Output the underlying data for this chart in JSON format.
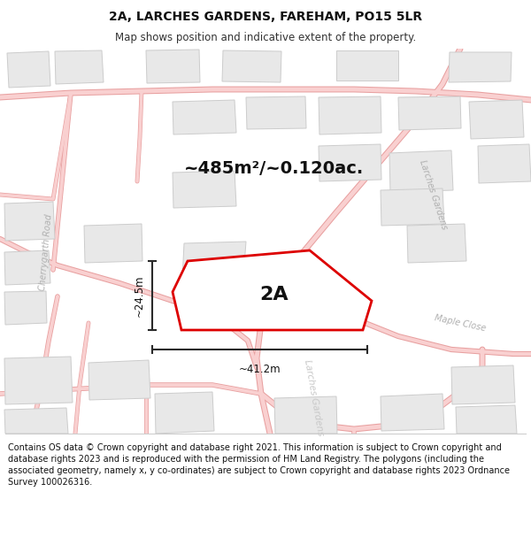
{
  "title_line1": "2A, LARCHES GARDENS, FAREHAM, PO15 5LR",
  "title_line2": "Map shows position and indicative extent of the property.",
  "area_text": "~485m²/~0.120ac.",
  "label_2A": "2A",
  "dim_height": "~24.5m",
  "dim_width": "~41.2m",
  "footer": "Contains OS data © Crown copyright and database right 2021. This information is subject to Crown copyright and database rights 2023 and is reproduced with the permission of HM Land Registry. The polygons (including the associated geometry, namely x, y co-ordinates) are subject to Crown copyright and database rights 2023 Ordnance Survey 100026316.",
  "bg_color": "#ffffff",
  "map_bg": "#ffffff",
  "road_color": "#f9d0d0",
  "road_border_color": "#e8a0a0",
  "building_fill": "#e8e8e8",
  "building_stroke": "#cccccc",
  "plot_stroke": "#dd0000",
  "plot_fill": "none",
  "text_color": "#1a1a1a",
  "footer_bg": "#ffffff",
  "street_label_color": "#b0b0b0",
  "dim_line_color": "#2a2a2a"
}
